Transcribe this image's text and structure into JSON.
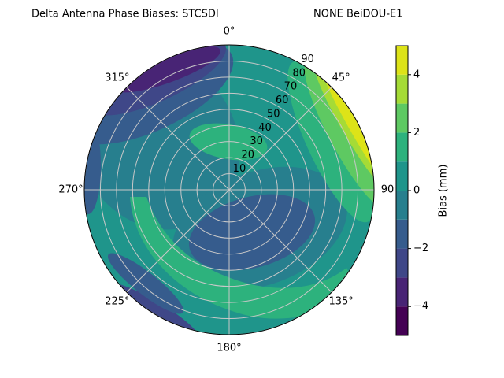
{
  "chart_data": {
    "type": "polar_contour",
    "title": "Delta Antenna Phase Biases: STCSDI",
    "subtitle": "NONE BeiDOU-E1",
    "theta_ticks": [
      {
        "value": 0,
        "label": "0°"
      },
      {
        "value": 45,
        "label": "45°"
      },
      {
        "value": 90,
        "label": "90"
      },
      {
        "value": 135,
        "label": "135°"
      },
      {
        "value": 180,
        "label": "180°"
      },
      {
        "value": 225,
        "label": "225°"
      },
      {
        "value": 270,
        "label": "270°"
      },
      {
        "value": 315,
        "label": "315°"
      }
    ],
    "rlim": [
      0,
      90
    ],
    "rticks": [
      10,
      20,
      30,
      40,
      50,
      60,
      70,
      80,
      90
    ],
    "grid": true,
    "colorbar": {
      "label": "Bias (mm)",
      "levels": [
        -5,
        -4,
        -3,
        -2,
        -1,
        0,
        1,
        2,
        3,
        4,
        5
      ],
      "colors": [
        "#440154",
        "#482475",
        "#3f4788",
        "#365c8d",
        "#277f8e",
        "#1f958b",
        "#2db27d",
        "#5ec962",
        "#a5db36",
        "#dde318"
      ],
      "ticks": [
        {
          "value": -4,
          "label": "−4"
        },
        {
          "value": -2,
          "label": "−2"
        },
        {
          "value": 0,
          "label": "0"
        },
        {
          "value": 2,
          "label": "2"
        },
        {
          "value": 4,
          "label": "4"
        }
      ]
    }
  }
}
